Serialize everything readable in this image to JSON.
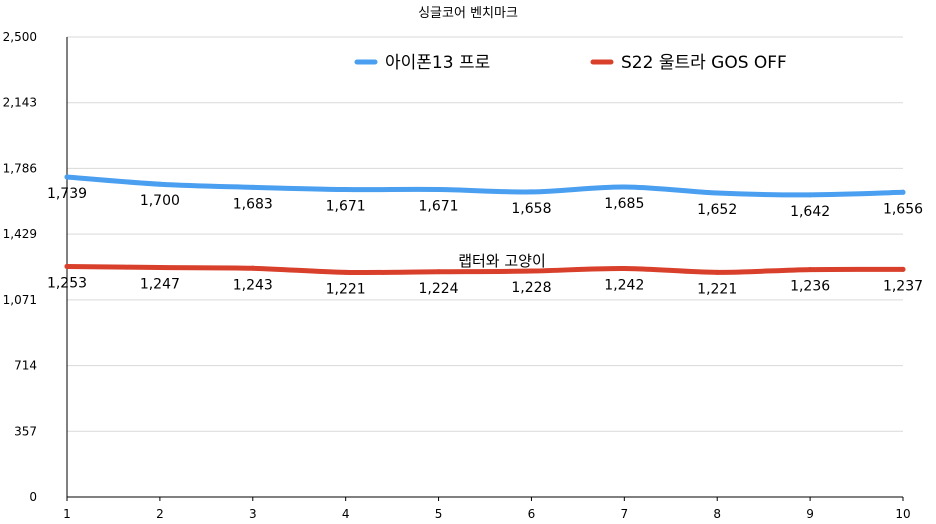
{
  "chart_data": {
    "type": "line",
    "title": "싱글코어 벤치마크",
    "watermark": "랩터와 고양이",
    "x": [
      1,
      2,
      3,
      4,
      5,
      6,
      7,
      8,
      9,
      10
    ],
    "x_tick_labels": [
      "1",
      "2",
      "3",
      "4",
      "5",
      "6",
      "7",
      "8",
      "9",
      "10"
    ],
    "y_ticks": [
      0,
      357,
      714,
      1071,
      1429,
      1786,
      2143,
      2500
    ],
    "y_tick_labels": [
      "0",
      "357",
      "714",
      "1,071",
      "1,429",
      "1,786",
      "2,143",
      "2,500"
    ],
    "ylim": [
      0,
      2500
    ],
    "grid": true,
    "legend_position": "top",
    "series": [
      {
        "name": "아이폰13 프로",
        "color": "#4a9ff0",
        "values": [
          1739,
          1700,
          1683,
          1671,
          1671,
          1658,
          1685,
          1652,
          1642,
          1656
        ],
        "labels": [
          "1,739",
          "1,700",
          "1,683",
          "1,671",
          "1,671",
          "1,658",
          "1,685",
          "1,652",
          "1,642",
          "1,656"
        ]
      },
      {
        "name": "S22 울트라 GOS OFF",
        "color": "#d9402c",
        "values": [
          1253,
          1247,
          1243,
          1221,
          1224,
          1228,
          1242,
          1221,
          1236,
          1237
        ],
        "labels": [
          "1,253",
          "1,247",
          "1,243",
          "1,221",
          "1,224",
          "1,228",
          "1,242",
          "1,221",
          "1,236",
          "1,237"
        ]
      }
    ]
  }
}
